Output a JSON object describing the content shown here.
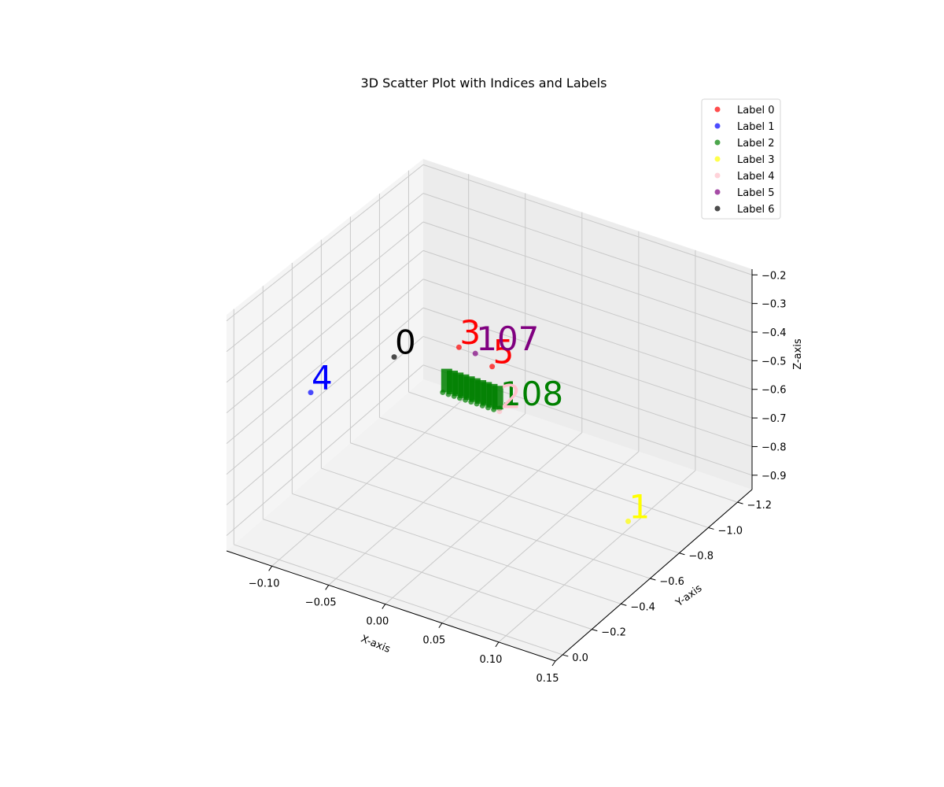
{
  "chart_data": {
    "type": "scatter",
    "projection": "3d",
    "title": "3D Scatter Plot with Indices and Labels",
    "xlabel": "X-axis",
    "ylabel": "Y-axis",
    "zlabel": "Z-axis",
    "xlim": [
      -0.14,
      0.15
    ],
    "ylim": [
      -1.3,
      0.05
    ],
    "zlim": [
      -0.95,
      -0.18
    ],
    "x_ticks": [
      -0.1,
      -0.05,
      0.0,
      0.05,
      0.1,
      0.15
    ],
    "x_tick_labels": [
      "−0.10",
      "−0.05",
      "0.00",
      "0.05",
      "0.10",
      "0.15"
    ],
    "y_ticks": [
      0.0,
      -0.2,
      -0.4,
      -0.6,
      -0.8,
      -1.0,
      -1.2
    ],
    "y_tick_labels": [
      "0.0",
      "−0.2",
      "−0.4",
      "−0.6",
      "−0.8",
      "−1.0",
      "−1.2"
    ],
    "z_ticks": [
      -0.2,
      -0.3,
      -0.4,
      -0.5,
      -0.6,
      -0.7,
      -0.8,
      -0.9
    ],
    "z_tick_labels": [
      "−0.2",
      "−0.3",
      "−0.4",
      "−0.5",
      "−0.6",
      "−0.7",
      "−0.8",
      "−0.9"
    ],
    "grid": true,
    "legend_position": "top-right",
    "series": [
      {
        "name": "Label 0",
        "color": "#ff0000",
        "points": [
          {
            "index": "3",
            "x": 0.02,
            "y": -0.3,
            "z": -0.22
          },
          {
            "index": "5",
            "x": 0.03,
            "y": -0.45,
            "z": -0.33
          }
        ]
      },
      {
        "name": "Label 1",
        "color": "#0000ff",
        "points": [
          {
            "index": "4",
            "x": -0.13,
            "y": -0.45,
            "z": -0.62
          }
        ]
      },
      {
        "name": "Label 2",
        "color": "#008000",
        "points": [
          {
            "index": "108",
            "x": 0.03,
            "y": -0.5,
            "z": -0.49
          },
          {
            "index": "",
            "x": -0.02,
            "y": -0.5,
            "z": -0.5
          },
          {
            "index": "",
            "x": -0.015,
            "y": -0.5,
            "z": -0.5
          },
          {
            "index": "",
            "x": -0.01,
            "y": -0.5,
            "z": -0.5
          },
          {
            "index": "",
            "x": -0.005,
            "y": -0.5,
            "z": -0.5
          },
          {
            "index": "",
            "x": 0.0,
            "y": -0.5,
            "z": -0.5
          },
          {
            "index": "",
            "x": 0.005,
            "y": -0.5,
            "z": -0.5
          },
          {
            "index": "",
            "x": 0.01,
            "y": -0.5,
            "z": -0.5
          },
          {
            "index": "",
            "x": 0.015,
            "y": -0.5,
            "z": -0.5
          },
          {
            "index": "",
            "x": 0.02,
            "y": -0.5,
            "z": -0.5
          },
          {
            "index": "",
            "x": 0.025,
            "y": -0.5,
            "z": -0.5
          }
        ]
      },
      {
        "name": "Label 3",
        "color": "#ffff00",
        "points": [
          {
            "index": "1",
            "x": 0.105,
            "y": -0.8,
            "z": -0.9
          }
        ]
      },
      {
        "name": "Label 4",
        "color": "#ffc0cb",
        "points": [
          {
            "index": "2",
            "x": 0.03,
            "y": -0.5,
            "z": -0.5
          }
        ]
      },
      {
        "name": "Label 5",
        "color": "#800080",
        "points": [
          {
            "index": "107",
            "x": 0.028,
            "y": -0.35,
            "z": -0.25
          }
        ]
      },
      {
        "name": "Label 6",
        "color": "#000000",
        "points": [
          {
            "index": "0",
            "x": -0.05,
            "y": -0.4,
            "z": -0.38
          }
        ]
      }
    ]
  }
}
